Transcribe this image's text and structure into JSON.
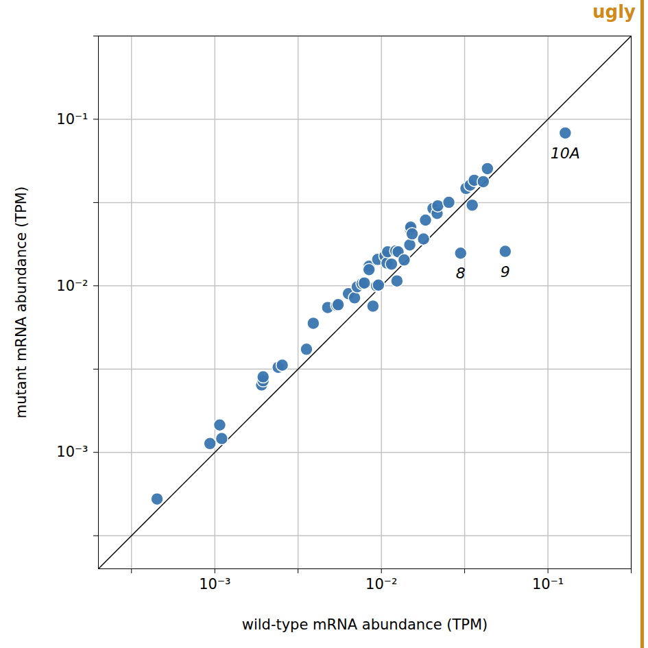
{
  "chart_data": {
    "type": "scatter",
    "annotation": "ugly",
    "x_label": "wild-type mRNA abundance (TPM)",
    "y_label": "mutant mRNA abundance (TPM)",
    "x": [
      0.00045,
      0.000935,
      0.00107,
      0.0011,
      0.00191,
      0.00195,
      0.00195,
      0.0024,
      0.00254,
      0.00355,
      0.0039,
      0.00476,
      0.00539,
      0.0055,
      0.00634,
      0.0069,
      0.00716,
      0.00766,
      0.0079,
      0.0089,
      0.00935,
      0.0096,
      0.00843,
      0.00843,
      0.0095,
      0.0105,
      0.0108,
      0.0109,
      0.0115,
      0.0122,
      0.0124,
      0.0126,
      0.0137,
      0.0148,
      0.0149,
      0.015,
      0.0153,
      0.0179,
      0.0184,
      0.0204,
      0.0216,
      0.0218,
      0.0254,
      0.0299,
      0.0322,
      0.0341,
      0.0351,
      0.0361,
      0.0409,
      0.0433,
      0.0554,
      0.127
    ],
    "values": [
      0.000525,
      0.00113,
      0.00146,
      0.00121,
      0.00254,
      0.00269,
      0.00284,
      0.00324,
      0.00334,
      0.00416,
      0.00596,
      0.00741,
      0.00763,
      0.0077,
      0.00897,
      0.00847,
      0.00986,
      0.0103,
      0.0104,
      0.00755,
      0.01,
      0.0101,
      0.0131,
      0.0125,
      0.0144,
      0.0151,
      0.0137,
      0.016,
      0.0135,
      0.0162,
      0.0107,
      0.016,
      0.0143,
      0.0176,
      0.0219,
      0.0225,
      0.0205,
      0.0191,
      0.0248,
      0.0291,
      0.0272,
      0.0302,
      0.0317,
      0.0157,
      0.0384,
      0.0402,
      0.0305,
      0.043,
      0.0422,
      0.0505,
      0.0161,
      0.0827
    ],
    "point_labels": [
      null,
      null,
      null,
      null,
      null,
      null,
      null,
      null,
      null,
      null,
      null,
      null,
      null,
      null,
      null,
      null,
      null,
      null,
      null,
      null,
      null,
      null,
      null,
      null,
      null,
      null,
      null,
      null,
      null,
      null,
      null,
      null,
      null,
      null,
      null,
      null,
      null,
      null,
      null,
      null,
      null,
      null,
      null,
      "8",
      null,
      null,
      null,
      null,
      null,
      null,
      "9",
      "10A"
    ],
    "reference_line": {
      "x": [
        0.0002,
        0.316
      ],
      "y": [
        0.0002,
        0.316
      ]
    },
    "color": "#3a75b0",
    "marker": "circle",
    "log": true,
    "grid": true,
    "xlim": [
      0.0002,
      0.316
    ],
    "ylim": [
      0.0002,
      0.316
    ],
    "xticks": [
      {
        "value": 0.000316,
        "label": null
      },
      {
        "value": 0.001,
        "label": "10⁻³"
      },
      {
        "value": 0.00316,
        "label": null
      },
      {
        "value": 0.01,
        "label": "10⁻²"
      },
      {
        "value": 0.0316,
        "label": null
      },
      {
        "value": 0.1,
        "label": "10⁻¹"
      },
      {
        "value": 0.316,
        "label": null
      }
    ],
    "yticks": [
      {
        "value": 0.000316,
        "label": null
      },
      {
        "value": 0.001,
        "label": "10⁻³"
      },
      {
        "value": 0.00316,
        "label": null
      },
      {
        "value": 0.01,
        "label": "10⁻²"
      },
      {
        "value": 0.0316,
        "label": null
      },
      {
        "value": 0.1,
        "label": "10⁻¹"
      },
      {
        "value": 0.316,
        "label": null
      }
    ]
  }
}
